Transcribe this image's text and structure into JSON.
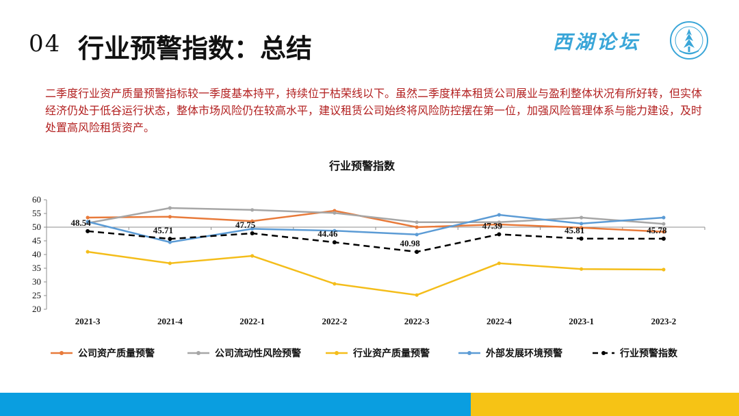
{
  "header": {
    "section_number": "04",
    "title": "行业预警指数：总结",
    "logo_text": "西湖论坛"
  },
  "summary": {
    "text": "二季度行业资产质量预警指标较一季度基本持平，持续位于枯荣线以下。虽然二季度样本租赁公司展业与盈利整体状况有所好转，但实体经济仍处于低谷运行状态，整体市场风险仍在较高水平，建议租赁公司始终将风险防控摆在第一位，加强风险管理体系与能力建设，及时处置高风险租赁资产。"
  },
  "chart_data": {
    "type": "line",
    "title": "行业预警指数",
    "xlabel": "",
    "ylabel": "",
    "ylim": [
      20,
      60
    ],
    "yticks": [
      20,
      25,
      30,
      35,
      40,
      45,
      50,
      55,
      60
    ],
    "baseline": 50,
    "grid": false,
    "legend": "bottom",
    "categories": [
      "2021-3",
      "2021-4",
      "2022-1",
      "2022-2",
      "2022-3",
      "2022-4",
      "2023-1",
      "2023-2"
    ],
    "series": [
      {
        "name": "公司资产质量预警",
        "color": "#e87a3a",
        "dash": "",
        "values": [
          53.5,
          53.8,
          52.2,
          56.0,
          50.0,
          51.0,
          49.8,
          48.3
        ]
      },
      {
        "name": "公司流动性风险预警",
        "color": "#a6a6a6",
        "dash": "",
        "values": [
          51.5,
          57.0,
          56.3,
          55.2,
          51.8,
          51.8,
          53.5,
          51.2
        ]
      },
      {
        "name": "行业资产质量预警",
        "color": "#f4bd1a",
        "dash": "",
        "values": [
          41.0,
          36.8,
          39.5,
          29.3,
          25.2,
          36.8,
          34.7,
          34.5
        ]
      },
      {
        "name": "外部发展环境预警",
        "color": "#5b9bd5",
        "dash": "",
        "values": [
          52.0,
          44.5,
          49.4,
          48.7,
          47.3,
          54.5,
          51.3,
          53.5
        ]
      },
      {
        "name": "行业预警指数",
        "color": "#000000",
        "dash": "9,6",
        "values": [
          48.54,
          45.71,
          47.75,
          44.46,
          40.98,
          47.39,
          45.81,
          45.78
        ],
        "labels": [
          "48.54",
          "45.71",
          "47.75",
          "44.46",
          "40.98",
          "47.39",
          "45.81",
          "45.78"
        ]
      }
    ]
  }
}
